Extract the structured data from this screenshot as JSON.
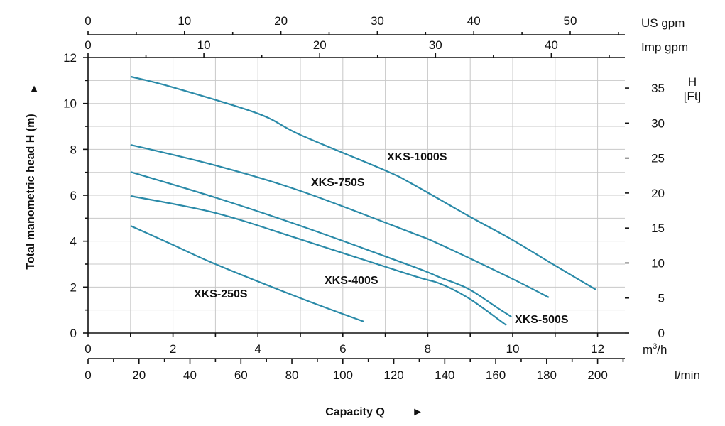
{
  "chart_data": {
    "type": "line",
    "title": "",
    "xlabel": "Capacity Q",
    "ylabel": "Total manometric head H (m)",
    "y2label": [
      "H",
      "[Ft]"
    ],
    "xlim": [
      0,
      12.63
    ],
    "ylim": [
      0,
      12
    ],
    "grid": true,
    "axes": {
      "m3h": {
        "unit": "m³/h",
        "unit_main": "m",
        "unit_sup": "3",
        "unit_tail": "/h",
        "ticks": [
          0,
          2,
          4,
          6,
          8,
          10,
          12
        ],
        "minor": [
          1,
          3,
          5,
          7,
          9,
          11
        ]
      },
      "lmin": {
        "unit": "l/min",
        "ticks": [
          0,
          20,
          40,
          60,
          80,
          100,
          120,
          140,
          160,
          180,
          200
        ]
      },
      "us_gpm": {
        "unit": "US  gpm",
        "ticks": [
          0,
          10,
          20,
          30,
          40,
          50
        ]
      },
      "imp_gpm": {
        "unit": "Imp gpm",
        "ticks": [
          0,
          10,
          20,
          30,
          40
        ]
      },
      "head_m": {
        "ticks": [
          0,
          2,
          4,
          6,
          8,
          10,
          12
        ]
      },
      "head_ft": {
        "ticks": [
          0,
          5,
          10,
          15,
          20,
          25,
          30,
          35
        ]
      }
    },
    "series": [
      {
        "name": "XKS-1000S",
        "x": [
          1,
          2,
          4,
          5,
          7,
          7.63,
          8.96,
          9.97,
          10.97,
          11.96
        ],
        "y": [
          11.17,
          10.7,
          9.56,
          8.63,
          7.08,
          6.5,
          5.1,
          4.08,
          2.97,
          1.89
        ]
      },
      {
        "name": "XKS-750S",
        "x": [
          1,
          3,
          5,
          7.63,
          8.3,
          9.97,
          10.85
        ],
        "y": [
          8.2,
          7.3,
          6.19,
          4.36,
          3.85,
          2.38,
          1.55
        ]
      },
      {
        "name": "XKS-500S",
        "x": [
          1,
          3,
          5,
          7.63,
          8.29,
          8.96,
          9.63,
          9.97
        ],
        "y": [
          7.02,
          5.9,
          4.67,
          2.91,
          2.42,
          1.92,
          1.11,
          0.71
        ]
      },
      {
        "name": "XKS-400S",
        "x": [
          1,
          3,
          5,
          7.63,
          8.29,
          8.96,
          9.85
        ],
        "y": [
          5.97,
          5.23,
          4.08,
          2.51,
          2.15,
          1.52,
          0.34
        ]
      },
      {
        "name": "XKS-250S",
        "x": [
          1,
          2,
          3,
          5,
          6.49
        ],
        "y": [
          4.67,
          3.84,
          3.0,
          1.52,
          0.5
        ]
      }
    ],
    "series_labels": [
      "XKS-1000S",
      "XKS-750S",
      "XKS-500S",
      "XKS-400S",
      "XKS-250S"
    ],
    "arrow": "►",
    "arrow_up": "▲"
  }
}
